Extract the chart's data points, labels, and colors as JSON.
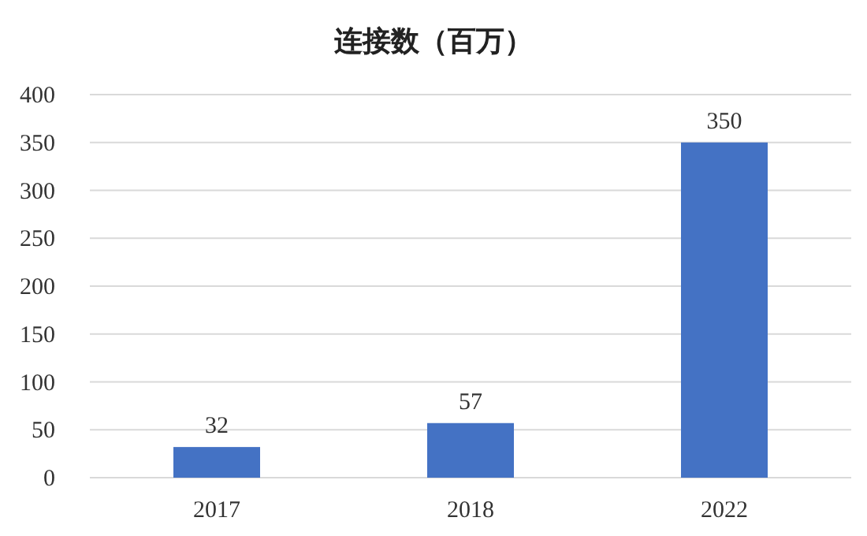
{
  "chart_data": {
    "type": "bar",
    "title": "连接数（百万）",
    "categories": [
      "2017",
      "2018",
      "2022"
    ],
    "values": [
      32,
      57,
      350
    ],
    "color": "#4472c4",
    "ylim": [
      0,
      400
    ],
    "yticks": [
      0,
      50,
      100,
      150,
      200,
      250,
      300,
      350,
      400
    ],
    "grid": "y",
    "data_labels": true
  }
}
